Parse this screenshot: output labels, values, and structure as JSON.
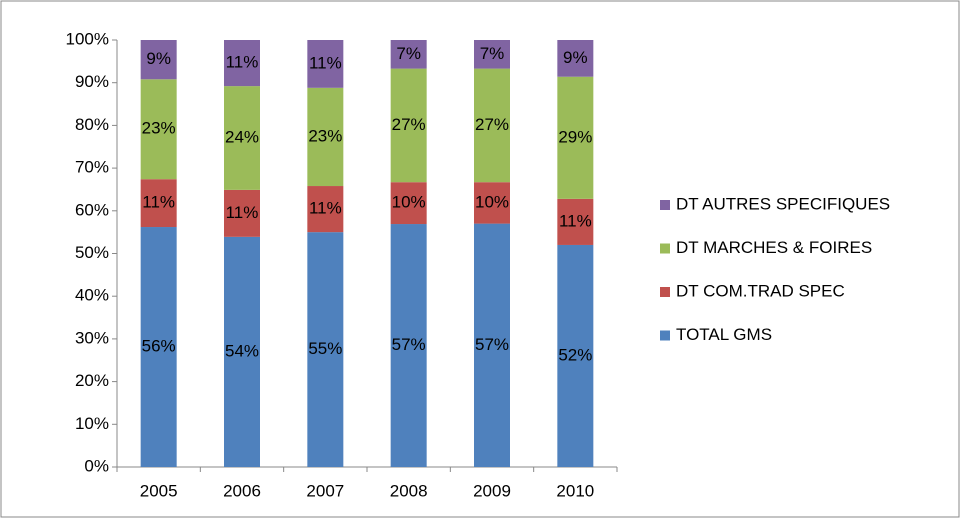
{
  "chart_data": {
    "type": "stacked_bar",
    "categories": [
      "2005",
      "2006",
      "2007",
      "2008",
      "2009",
      "2010"
    ],
    "series": [
      {
        "name": "TOTAL GMS",
        "color": "#4f81bd",
        "values": [
          56.2,
          53.9,
          55.0,
          56.9,
          57.0,
          52.0
        ],
        "value_labels": [
          "56%",
          "54%",
          "55%",
          "57%",
          "57%",
          "52%"
        ]
      },
      {
        "name": "DT COM.TRAD SPEC",
        "color": "#c0504d",
        "values": [
          11.2,
          11.0,
          10.8,
          9.8,
          9.7,
          10.8
        ],
        "value_labels": [
          "11%",
          "11%",
          "11%",
          "10%",
          "10%",
          "11%"
        ]
      },
      {
        "name": "DT MARCHES & FOIRES",
        "color": "#9bbb59",
        "values": [
          23.4,
          24.3,
          23.0,
          26.6,
          26.6,
          28.6
        ],
        "value_labels": [
          "23%",
          "24%",
          "23%",
          "27%",
          "27%",
          "29%"
        ]
      },
      {
        "name": "DT AUTRES SPECIFIQUES",
        "color": "#8064a2",
        "values": [
          9.2,
          10.8,
          11.2,
          6.7,
          6.7,
          8.6
        ],
        "value_labels": [
          "9%",
          "11%",
          "11%",
          "7%",
          "7%",
          "9%"
        ]
      }
    ],
    "ylim": [
      0,
      100
    ],
    "yticks": [
      {
        "value": 0,
        "label": "0%"
      },
      {
        "value": 10,
        "label": "10%"
      },
      {
        "value": 20,
        "label": "20%"
      },
      {
        "value": 30,
        "label": "30%"
      },
      {
        "value": 40,
        "label": "40%"
      },
      {
        "value": 50,
        "label": "50%"
      },
      {
        "value": 60,
        "label": "60%"
      },
      {
        "value": 70,
        "label": "70%"
      },
      {
        "value": 80,
        "label": "80%"
      },
      {
        "value": 90,
        "label": "90%"
      },
      {
        "value": 100,
        "label": "100%"
      }
    ],
    "legend": "right"
  }
}
